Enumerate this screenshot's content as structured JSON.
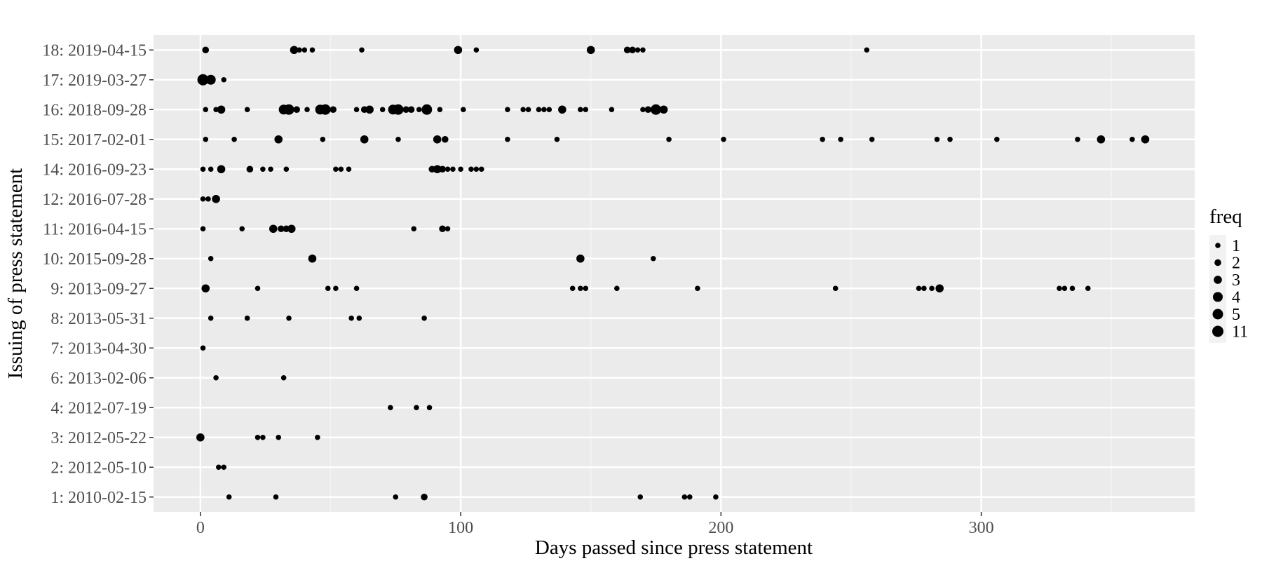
{
  "chart_data": {
    "type": "scatter",
    "xlabel": "Days passed since press statement",
    "ylabel": "Issuing of press statement",
    "xlim": [
      -18,
      382
    ],
    "x_ticks": [
      0,
      100,
      200,
      300
    ],
    "categories": [
      "1: 2010-02-15",
      "2: 2012-05-10",
      "3: 2012-05-22",
      "4: 2012-07-19",
      "6: 2013-02-06",
      "7: 2013-04-30",
      "8: 2013-05-31",
      "9: 2013-09-27",
      "10: 2015-09-28",
      "11: 2016-04-15",
      "12: 2016-07-28",
      "14: 2016-09-23",
      "15: 2017-02-01",
      "16: 2018-09-28",
      "17: 2019-03-27",
      "18: 2019-04-15"
    ],
    "grid": true,
    "background": "#ebebeb",
    "point_color": "#000000",
    "legend": {
      "title": "freq",
      "placement": "right",
      "entries": [
        "1",
        "2",
        "3",
        "4",
        "5",
        "11"
      ]
    },
    "points": [
      {
        "cat": "1: 2010-02-15",
        "x": 11,
        "freq": 1
      },
      {
        "cat": "1: 2010-02-15",
        "x": 29,
        "freq": 1
      },
      {
        "cat": "1: 2010-02-15",
        "x": 75,
        "freq": 1
      },
      {
        "cat": "1: 2010-02-15",
        "x": 86,
        "freq": 2
      },
      {
        "cat": "1: 2010-02-15",
        "x": 169,
        "freq": 1
      },
      {
        "cat": "1: 2010-02-15",
        "x": 186,
        "freq": 1
      },
      {
        "cat": "1: 2010-02-15",
        "x": 188,
        "freq": 1
      },
      {
        "cat": "1: 2010-02-15",
        "x": 198,
        "freq": 1
      },
      {
        "cat": "2: 2012-05-10",
        "x": 7,
        "freq": 1
      },
      {
        "cat": "2: 2012-05-10",
        "x": 9,
        "freq": 1
      },
      {
        "cat": "3: 2012-05-22",
        "x": 0,
        "freq": 3
      },
      {
        "cat": "3: 2012-05-22",
        "x": 22,
        "freq": 1
      },
      {
        "cat": "3: 2012-05-22",
        "x": 24,
        "freq": 1
      },
      {
        "cat": "3: 2012-05-22",
        "x": 30,
        "freq": 1
      },
      {
        "cat": "3: 2012-05-22",
        "x": 45,
        "freq": 1
      },
      {
        "cat": "4: 2012-07-19",
        "x": 73,
        "freq": 1
      },
      {
        "cat": "4: 2012-07-19",
        "x": 83,
        "freq": 1
      },
      {
        "cat": "4: 2012-07-19",
        "x": 88,
        "freq": 1
      },
      {
        "cat": "6: 2013-02-06",
        "x": 6,
        "freq": 1
      },
      {
        "cat": "6: 2013-02-06",
        "x": 32,
        "freq": 1
      },
      {
        "cat": "7: 2013-04-30",
        "x": 1,
        "freq": 1
      },
      {
        "cat": "8: 2013-05-31",
        "x": 4,
        "freq": 1
      },
      {
        "cat": "8: 2013-05-31",
        "x": 18,
        "freq": 1
      },
      {
        "cat": "8: 2013-05-31",
        "x": 34,
        "freq": 1
      },
      {
        "cat": "8: 2013-05-31",
        "x": 58,
        "freq": 1
      },
      {
        "cat": "8: 2013-05-31",
        "x": 61,
        "freq": 1
      },
      {
        "cat": "8: 2013-05-31",
        "x": 86,
        "freq": 1
      },
      {
        "cat": "9: 2013-09-27",
        "x": 2,
        "freq": 3
      },
      {
        "cat": "9: 2013-09-27",
        "x": 22,
        "freq": 1
      },
      {
        "cat": "9: 2013-09-27",
        "x": 49,
        "freq": 1
      },
      {
        "cat": "9: 2013-09-27",
        "x": 52,
        "freq": 1
      },
      {
        "cat": "9: 2013-09-27",
        "x": 60,
        "freq": 1
      },
      {
        "cat": "9: 2013-09-27",
        "x": 143,
        "freq": 1
      },
      {
        "cat": "9: 2013-09-27",
        "x": 146,
        "freq": 1
      },
      {
        "cat": "9: 2013-09-27",
        "x": 148,
        "freq": 1
      },
      {
        "cat": "9: 2013-09-27",
        "x": 160,
        "freq": 1
      },
      {
        "cat": "9: 2013-09-27",
        "x": 191,
        "freq": 1
      },
      {
        "cat": "9: 2013-09-27",
        "x": 244,
        "freq": 1
      },
      {
        "cat": "9: 2013-09-27",
        "x": 276,
        "freq": 1
      },
      {
        "cat": "9: 2013-09-27",
        "x": 278,
        "freq": 1
      },
      {
        "cat": "9: 2013-09-27",
        "x": 281,
        "freq": 1
      },
      {
        "cat": "9: 2013-09-27",
        "x": 284,
        "freq": 3
      },
      {
        "cat": "9: 2013-09-27",
        "x": 330,
        "freq": 1
      },
      {
        "cat": "9: 2013-09-27",
        "x": 332,
        "freq": 1
      },
      {
        "cat": "9: 2013-09-27",
        "x": 335,
        "freq": 1
      },
      {
        "cat": "9: 2013-09-27",
        "x": 341,
        "freq": 1
      },
      {
        "cat": "10: 2015-09-28",
        "x": 4,
        "freq": 1
      },
      {
        "cat": "10: 2015-09-28",
        "x": 43,
        "freq": 3
      },
      {
        "cat": "10: 2015-09-28",
        "x": 146,
        "freq": 3
      },
      {
        "cat": "10: 2015-09-28",
        "x": 174,
        "freq": 1
      },
      {
        "cat": "11: 2016-04-15",
        "x": 1,
        "freq": 1
      },
      {
        "cat": "11: 2016-04-15",
        "x": 16,
        "freq": 1
      },
      {
        "cat": "11: 2016-04-15",
        "x": 28,
        "freq": 3
      },
      {
        "cat": "11: 2016-04-15",
        "x": 31,
        "freq": 2
      },
      {
        "cat": "11: 2016-04-15",
        "x": 33,
        "freq": 2
      },
      {
        "cat": "11: 2016-04-15",
        "x": 35,
        "freq": 3
      },
      {
        "cat": "11: 2016-04-15",
        "x": 82,
        "freq": 1
      },
      {
        "cat": "11: 2016-04-15",
        "x": 93,
        "freq": 2
      },
      {
        "cat": "11: 2016-04-15",
        "x": 95,
        "freq": 1
      },
      {
        "cat": "12: 2016-07-28",
        "x": 1,
        "freq": 1
      },
      {
        "cat": "12: 2016-07-28",
        "x": 3,
        "freq": 1
      },
      {
        "cat": "12: 2016-07-28",
        "x": 6,
        "freq": 3
      },
      {
        "cat": "14: 2016-09-23",
        "x": 1,
        "freq": 1
      },
      {
        "cat": "14: 2016-09-23",
        "x": 4,
        "freq": 1
      },
      {
        "cat": "14: 2016-09-23",
        "x": 8,
        "freq": 3
      },
      {
        "cat": "14: 2016-09-23",
        "x": 19,
        "freq": 2
      },
      {
        "cat": "14: 2016-09-23",
        "x": 24,
        "freq": 1
      },
      {
        "cat": "14: 2016-09-23",
        "x": 27,
        "freq": 1
      },
      {
        "cat": "14: 2016-09-23",
        "x": 33,
        "freq": 1
      },
      {
        "cat": "14: 2016-09-23",
        "x": 52,
        "freq": 1
      },
      {
        "cat": "14: 2016-09-23",
        "x": 54,
        "freq": 1
      },
      {
        "cat": "14: 2016-09-23",
        "x": 57,
        "freq": 1
      },
      {
        "cat": "14: 2016-09-23",
        "x": 89,
        "freq": 2
      },
      {
        "cat": "14: 2016-09-23",
        "x": 91,
        "freq": 3
      },
      {
        "cat": "14: 2016-09-23",
        "x": 93,
        "freq": 2
      },
      {
        "cat": "14: 2016-09-23",
        "x": 95,
        "freq": 1
      },
      {
        "cat": "14: 2016-09-23",
        "x": 97,
        "freq": 1
      },
      {
        "cat": "14: 2016-09-23",
        "x": 100,
        "freq": 1
      },
      {
        "cat": "14: 2016-09-23",
        "x": 104,
        "freq": 1
      },
      {
        "cat": "14: 2016-09-23",
        "x": 106,
        "freq": 1
      },
      {
        "cat": "14: 2016-09-23",
        "x": 108,
        "freq": 1
      },
      {
        "cat": "15: 2017-02-01",
        "x": 2,
        "freq": 1
      },
      {
        "cat": "15: 2017-02-01",
        "x": 13,
        "freq": 1
      },
      {
        "cat": "15: 2017-02-01",
        "x": 30,
        "freq": 3
      },
      {
        "cat": "15: 2017-02-01",
        "x": 47,
        "freq": 1
      },
      {
        "cat": "15: 2017-02-01",
        "x": 63,
        "freq": 3
      },
      {
        "cat": "15: 2017-02-01",
        "x": 76,
        "freq": 1
      },
      {
        "cat": "15: 2017-02-01",
        "x": 91,
        "freq": 3
      },
      {
        "cat": "15: 2017-02-01",
        "x": 94,
        "freq": 2
      },
      {
        "cat": "15: 2017-02-01",
        "x": 118,
        "freq": 1
      },
      {
        "cat": "15: 2017-02-01",
        "x": 137,
        "freq": 1
      },
      {
        "cat": "15: 2017-02-01",
        "x": 180,
        "freq": 1
      },
      {
        "cat": "15: 2017-02-01",
        "x": 201,
        "freq": 1
      },
      {
        "cat": "15: 2017-02-01",
        "x": 239,
        "freq": 1
      },
      {
        "cat": "15: 2017-02-01",
        "x": 246,
        "freq": 1
      },
      {
        "cat": "15: 2017-02-01",
        "x": 258,
        "freq": 1
      },
      {
        "cat": "15: 2017-02-01",
        "x": 283,
        "freq": 1
      },
      {
        "cat": "15: 2017-02-01",
        "x": 288,
        "freq": 1
      },
      {
        "cat": "15: 2017-02-01",
        "x": 306,
        "freq": 1
      },
      {
        "cat": "15: 2017-02-01",
        "x": 337,
        "freq": 1
      },
      {
        "cat": "15: 2017-02-01",
        "x": 346,
        "freq": 3
      },
      {
        "cat": "15: 2017-02-01",
        "x": 358,
        "freq": 1
      },
      {
        "cat": "15: 2017-02-01",
        "x": 363,
        "freq": 3
      },
      {
        "cat": "16: 2018-09-28",
        "x": 2,
        "freq": 1
      },
      {
        "cat": "16: 2018-09-28",
        "x": 6,
        "freq": 1
      },
      {
        "cat": "16: 2018-09-28",
        "x": 8,
        "freq": 3
      },
      {
        "cat": "16: 2018-09-28",
        "x": 18,
        "freq": 1
      },
      {
        "cat": "16: 2018-09-28",
        "x": 32,
        "freq": 4
      },
      {
        "cat": "16: 2018-09-28",
        "x": 34,
        "freq": 5
      },
      {
        "cat": "16: 2018-09-28",
        "x": 37,
        "freq": 2
      },
      {
        "cat": "16: 2018-09-28",
        "x": 41,
        "freq": 1
      },
      {
        "cat": "16: 2018-09-28",
        "x": 46,
        "freq": 4
      },
      {
        "cat": "16: 2018-09-28",
        "x": 48,
        "freq": 5
      },
      {
        "cat": "16: 2018-09-28",
        "x": 51,
        "freq": 2
      },
      {
        "cat": "16: 2018-09-28",
        "x": 60,
        "freq": 1
      },
      {
        "cat": "16: 2018-09-28",
        "x": 63,
        "freq": 2
      },
      {
        "cat": "16: 2018-09-28",
        "x": 65,
        "freq": 3
      },
      {
        "cat": "16: 2018-09-28",
        "x": 70,
        "freq": 1
      },
      {
        "cat": "16: 2018-09-28",
        "x": 74,
        "freq": 4
      },
      {
        "cat": "16: 2018-09-28",
        "x": 76,
        "freq": 5
      },
      {
        "cat": "16: 2018-09-28",
        "x": 79,
        "freq": 2
      },
      {
        "cat": "16: 2018-09-28",
        "x": 81,
        "freq": 2
      },
      {
        "cat": "16: 2018-09-28",
        "x": 84,
        "freq": 1
      },
      {
        "cat": "16: 2018-09-28",
        "x": 87,
        "freq": 5
      },
      {
        "cat": "16: 2018-09-28",
        "x": 92,
        "freq": 1
      },
      {
        "cat": "16: 2018-09-28",
        "x": 101,
        "freq": 1
      },
      {
        "cat": "16: 2018-09-28",
        "x": 118,
        "freq": 1
      },
      {
        "cat": "16: 2018-09-28",
        "x": 124,
        "freq": 1
      },
      {
        "cat": "16: 2018-09-28",
        "x": 126,
        "freq": 1
      },
      {
        "cat": "16: 2018-09-28",
        "x": 130,
        "freq": 1
      },
      {
        "cat": "16: 2018-09-28",
        "x": 132,
        "freq": 1
      },
      {
        "cat": "16: 2018-09-28",
        "x": 134,
        "freq": 1
      },
      {
        "cat": "16: 2018-09-28",
        "x": 139,
        "freq": 3
      },
      {
        "cat": "16: 2018-09-28",
        "x": 146,
        "freq": 1
      },
      {
        "cat": "16: 2018-09-28",
        "x": 148,
        "freq": 1
      },
      {
        "cat": "16: 2018-09-28",
        "x": 158,
        "freq": 1
      },
      {
        "cat": "16: 2018-09-28",
        "x": 170,
        "freq": 1
      },
      {
        "cat": "16: 2018-09-28",
        "x": 172,
        "freq": 2
      },
      {
        "cat": "16: 2018-09-28",
        "x": 175,
        "freq": 5
      },
      {
        "cat": "16: 2018-09-28",
        "x": 178,
        "freq": 3
      },
      {
        "cat": "17: 2019-03-27",
        "x": 1,
        "freq": 11
      },
      {
        "cat": "17: 2019-03-27",
        "x": 4,
        "freq": 4
      },
      {
        "cat": "17: 2019-03-27",
        "x": 9,
        "freq": 1
      },
      {
        "cat": "18: 2019-04-15",
        "x": 2,
        "freq": 2
      },
      {
        "cat": "18: 2019-04-15",
        "x": 36,
        "freq": 3
      },
      {
        "cat": "18: 2019-04-15",
        "x": 38,
        "freq": 1
      },
      {
        "cat": "18: 2019-04-15",
        "x": 40,
        "freq": 1
      },
      {
        "cat": "18: 2019-04-15",
        "x": 43,
        "freq": 1
      },
      {
        "cat": "18: 2019-04-15",
        "x": 62,
        "freq": 1
      },
      {
        "cat": "18: 2019-04-15",
        "x": 99,
        "freq": 3
      },
      {
        "cat": "18: 2019-04-15",
        "x": 106,
        "freq": 1
      },
      {
        "cat": "18: 2019-04-15",
        "x": 150,
        "freq": 3
      },
      {
        "cat": "18: 2019-04-15",
        "x": 164,
        "freq": 2
      },
      {
        "cat": "18: 2019-04-15",
        "x": 166,
        "freq": 2
      },
      {
        "cat": "18: 2019-04-15",
        "x": 168,
        "freq": 1
      },
      {
        "cat": "18: 2019-04-15",
        "x": 170,
        "freq": 1
      },
      {
        "cat": "18: 2019-04-15",
        "x": 256,
        "freq": 1
      }
    ]
  }
}
